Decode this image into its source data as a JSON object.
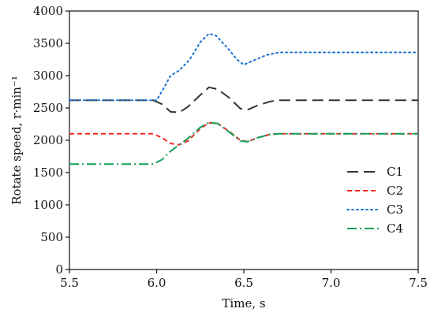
{
  "chart_data": {
    "type": "line",
    "title": "",
    "xlabel": "Time, s",
    "ylabel": "Rotate speed, r·min⁻¹",
    "xlim": [
      5.5,
      7.5
    ],
    "ylim": [
      0,
      4000
    ],
    "xticks": [
      5.5,
      6.0,
      6.5,
      7.0,
      7.5
    ],
    "xtick_labels": [
      "5.5",
      "6.0",
      "6.5",
      "7.0",
      "7.5"
    ],
    "yticks": [
      0,
      500,
      1000,
      1500,
      2000,
      2500,
      3000,
      3500,
      4000
    ],
    "ytick_labels": [
      "0",
      "500",
      "1000",
      "1500",
      "2000",
      "2500",
      "3000",
      "3500",
      "4000"
    ],
    "grid": false,
    "legend_position": "center-right",
    "series": [
      {
        "name": "C1",
        "color": "#333333",
        "dash": "long-dash",
        "points": [
          [
            5.5,
            2620
          ],
          [
            5.98,
            2620
          ],
          [
            6.03,
            2560
          ],
          [
            6.08,
            2440
          ],
          [
            6.13,
            2430
          ],
          [
            6.18,
            2520
          ],
          [
            6.25,
            2700
          ],
          [
            6.3,
            2820
          ],
          [
            6.35,
            2790
          ],
          [
            6.42,
            2650
          ],
          [
            6.48,
            2490
          ],
          [
            6.52,
            2470
          ],
          [
            6.58,
            2540
          ],
          [
            6.65,
            2600
          ],
          [
            6.7,
            2620
          ],
          [
            7.5,
            2620
          ]
        ]
      },
      {
        "name": "C2",
        "color": "#ee2a24",
        "dash": "short-dash",
        "points": [
          [
            5.5,
            2100
          ],
          [
            5.98,
            2100
          ],
          [
            6.03,
            2040
          ],
          [
            6.08,
            1950
          ],
          [
            6.13,
            1930
          ],
          [
            6.18,
            1990
          ],
          [
            6.25,
            2180
          ],
          [
            6.3,
            2270
          ],
          [
            6.35,
            2260
          ],
          [
            6.42,
            2130
          ],
          [
            6.48,
            2000
          ],
          [
            6.52,
            1980
          ],
          [
            6.58,
            2040
          ],
          [
            6.65,
            2090
          ],
          [
            6.7,
            2100
          ],
          [
            7.5,
            2100
          ]
        ]
      },
      {
        "name": "C3",
        "color": "#1a74d2",
        "dash": "dot",
        "points": [
          [
            5.5,
            2620
          ],
          [
            6.0,
            2620
          ],
          [
            6.04,
            2800
          ],
          [
            6.08,
            3000
          ],
          [
            6.13,
            3080
          ],
          [
            6.19,
            3250
          ],
          [
            6.25,
            3520
          ],
          [
            6.3,
            3650
          ],
          [
            6.34,
            3620
          ],
          [
            6.4,
            3450
          ],
          [
            6.46,
            3250
          ],
          [
            6.5,
            3170
          ],
          [
            6.56,
            3240
          ],
          [
            6.63,
            3320
          ],
          [
            6.7,
            3360
          ],
          [
            7.5,
            3360
          ]
        ]
      },
      {
        "name": "C4",
        "color": "#12a05a",
        "dash": "dash-dot",
        "points": [
          [
            5.5,
            1630
          ],
          [
            5.98,
            1630
          ],
          [
            6.03,
            1700
          ],
          [
            6.08,
            1830
          ],
          [
            6.13,
            1930
          ],
          [
            6.18,
            2030
          ],
          [
            6.25,
            2200
          ],
          [
            6.3,
            2275
          ],
          [
            6.35,
            2260
          ],
          [
            6.42,
            2120
          ],
          [
            6.48,
            1990
          ],
          [
            6.52,
            1975
          ],
          [
            6.58,
            2040
          ],
          [
            6.65,
            2090
          ],
          [
            6.7,
            2100
          ],
          [
            7.5,
            2100
          ]
        ]
      }
    ]
  }
}
